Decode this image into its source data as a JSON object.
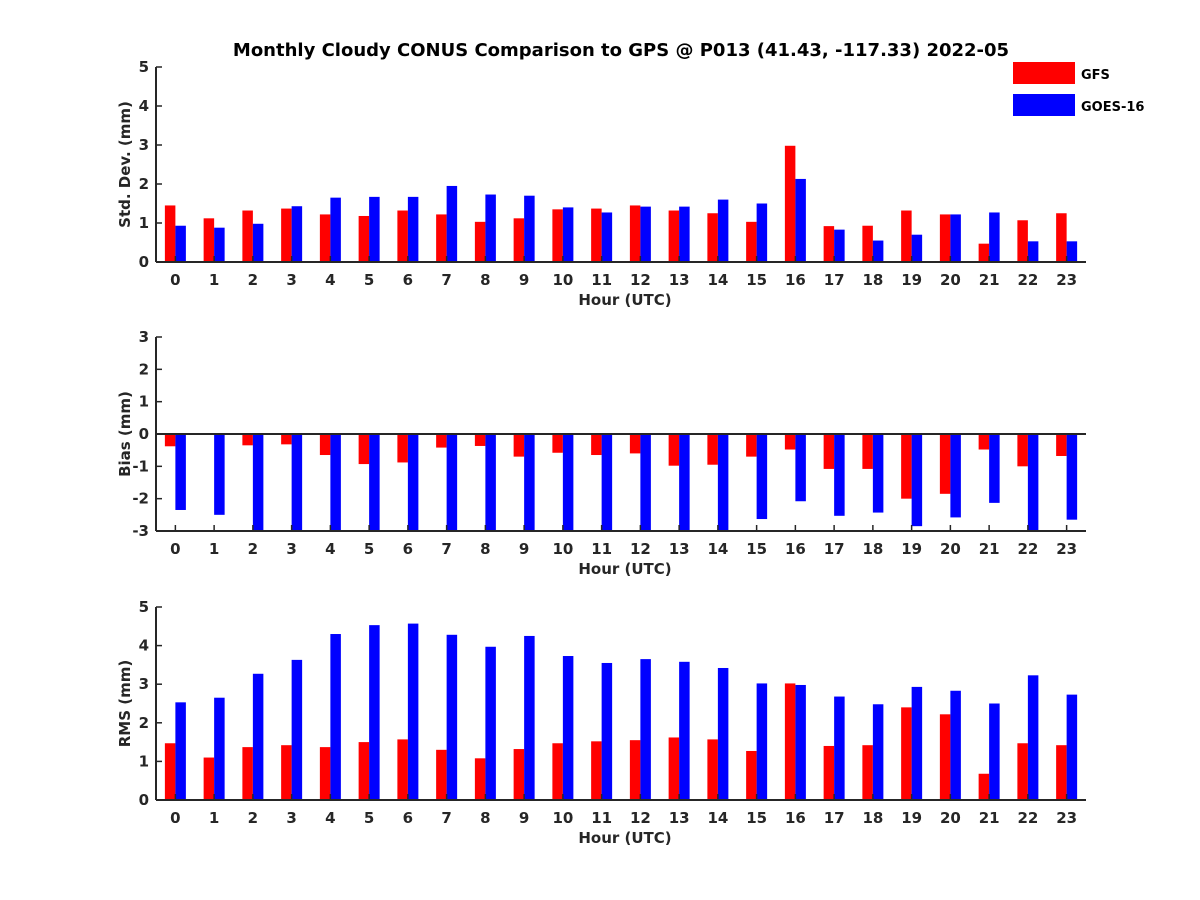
{
  "chart_data": {
    "title": "Monthly Cloudy CONUS Comparison to GPS @ P013 (41.43, -117.33) 2022-05",
    "colors": {
      "GFS": "#ff0000",
      "GOES-16": "#0000ff"
    },
    "legend": {
      "placement": "top-right",
      "entries": [
        "GFS",
        "GOES-16"
      ]
    },
    "categories": [
      "0",
      "1",
      "2",
      "3",
      "4",
      "5",
      "6",
      "7",
      "8",
      "9",
      "10",
      "11",
      "12",
      "13",
      "14",
      "15",
      "16",
      "17",
      "18",
      "19",
      "20",
      "21",
      "22",
      "23"
    ],
    "panels": [
      {
        "type": "bar",
        "xlabel": "Hour (UTC)",
        "ylabel": "Std. Dev. (mm)",
        "ylim": [
          0,
          5
        ],
        "yticks": [
          "0",
          "1",
          "2",
          "3",
          "4",
          "5"
        ],
        "grid": false,
        "series": [
          {
            "name": "GFS",
            "values": [
              1.45,
              1.12,
              1.32,
              1.37,
              1.22,
              1.18,
              1.32,
              1.22,
              1.03,
              1.12,
              1.35,
              1.37,
              1.45,
              1.32,
              1.25,
              1.03,
              2.98,
              0.92,
              0.93,
              1.32,
              1.22,
              0.47,
              1.07,
              1.25
            ]
          },
          {
            "name": "GOES-16",
            "values": [
              0.93,
              0.88,
              0.98,
              1.43,
              1.65,
              1.67,
              1.67,
              1.95,
              1.73,
              1.7,
              1.4,
              1.27,
              1.42,
              1.42,
              1.6,
              1.5,
              2.13,
              0.83,
              0.55,
              0.7,
              1.22,
              1.27,
              0.53,
              0.53
            ]
          }
        ]
      },
      {
        "type": "bar",
        "xlabel": "Hour (UTC)",
        "ylabel": "Bias (mm)",
        "ylim": [
          -3,
          3
        ],
        "yticks": [
          "-3",
          "-2",
          "-1",
          "0",
          "1",
          "2",
          "3"
        ],
        "grid": false,
        "series": [
          {
            "name": "GFS",
            "values": [
              -0.38,
              -0.02,
              -0.35,
              -0.32,
              -0.65,
              -0.93,
              -0.88,
              -0.42,
              -0.37,
              -0.7,
              -0.58,
              -0.65,
              -0.6,
              -0.98,
              -0.95,
              -0.7,
              -0.48,
              -1.08,
              -1.08,
              -2.0,
              -1.85,
              -0.48,
              -1.0,
              -0.68
            ]
          },
          {
            "name": "GOES-16",
            "values": [
              -2.35,
              -2.5,
              -3.0,
              -3.0,
              -3.0,
              -3.0,
              -3.0,
              -3.0,
              -3.0,
              -3.0,
              -3.0,
              -3.0,
              -3.0,
              -3.0,
              -3.0,
              -2.63,
              -2.08,
              -2.53,
              -2.43,
              -2.85,
              -2.58,
              -2.13,
              -3.0,
              -2.65
            ]
          }
        ]
      },
      {
        "type": "bar",
        "xlabel": "Hour (UTC)",
        "ylabel": "RMS (mm)",
        "ylim": [
          0,
          5
        ],
        "yticks": [
          "0",
          "1",
          "2",
          "3",
          "4",
          "5"
        ],
        "grid": false,
        "series": [
          {
            "name": "GFS",
            "values": [
              1.47,
              1.1,
              1.37,
              1.42,
              1.37,
              1.5,
              1.57,
              1.3,
              1.08,
              1.32,
              1.47,
              1.52,
              1.55,
              1.62,
              1.57,
              1.27,
              3.02,
              1.4,
              1.42,
              2.4,
              2.22,
              0.68,
              1.47,
              1.42
            ]
          },
          {
            "name": "GOES-16",
            "values": [
              2.53,
              2.65,
              3.27,
              3.63,
              4.3,
              4.53,
              4.57,
              4.28,
              3.97,
              4.25,
              3.73,
              3.55,
              3.65,
              3.58,
              3.42,
              3.02,
              2.98,
              2.68,
              2.48,
              2.93,
              2.83,
              2.5,
              3.23,
              2.73
            ]
          }
        ]
      }
    ]
  }
}
